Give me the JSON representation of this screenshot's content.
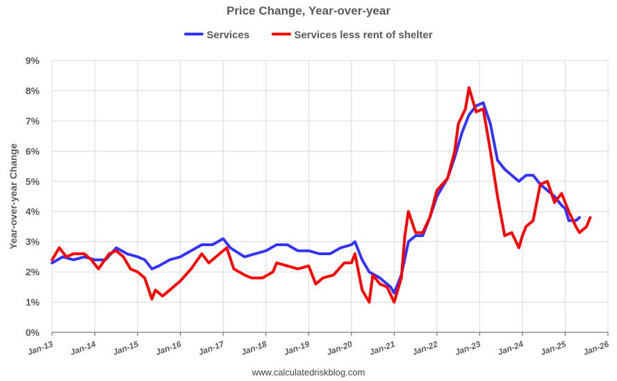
{
  "chart_data": {
    "type": "line",
    "title": "Price Change, Year-over-year",
    "ylabel": "Year-over-year Change",
    "xlabel": "",
    "source": "www.calculatedriskblog.com",
    "ylim": [
      0,
      9
    ],
    "y_ticks": [
      "0%",
      "1%",
      "2%",
      "3%",
      "4%",
      "5%",
      "6%",
      "7%",
      "8%",
      "9%"
    ],
    "x_ticks": [
      "Jan-13",
      "Jan-14",
      "Jan-15",
      "Jan-16",
      "Jan-17",
      "Jan-18",
      "Jan-19",
      "Jan-20",
      "Jan-21",
      "Jan-22",
      "Jan-23",
      "Jan-24",
      "Jan-25",
      "Jan-26"
    ],
    "grid": true,
    "legend_position": "top",
    "series": [
      {
        "name": "Services",
        "color": "#3333ff",
        "points": [
          [
            "2013-01",
            2.3
          ],
          [
            "2013-04",
            2.5
          ],
          [
            "2013-07",
            2.4
          ],
          [
            "2013-10",
            2.5
          ],
          [
            "2014-01",
            2.4
          ],
          [
            "2014-04",
            2.4
          ],
          [
            "2014-07",
            2.8
          ],
          [
            "2014-10",
            2.6
          ],
          [
            "2015-01",
            2.5
          ],
          [
            "2015-03",
            2.4
          ],
          [
            "2015-05",
            2.1
          ],
          [
            "2015-07",
            2.2
          ],
          [
            "2015-10",
            2.4
          ],
          [
            "2016-01",
            2.5
          ],
          [
            "2016-04",
            2.7
          ],
          [
            "2016-07",
            2.9
          ],
          [
            "2016-10",
            2.9
          ],
          [
            "2017-01",
            3.1
          ],
          [
            "2017-03",
            2.8
          ],
          [
            "2017-07",
            2.5
          ],
          [
            "2017-10",
            2.6
          ],
          [
            "2018-01",
            2.7
          ],
          [
            "2018-04",
            2.9
          ],
          [
            "2018-07",
            2.9
          ],
          [
            "2018-10",
            2.7
          ],
          [
            "2019-01",
            2.7
          ],
          [
            "2019-04",
            2.6
          ],
          [
            "2019-07",
            2.6
          ],
          [
            "2019-10",
            2.8
          ],
          [
            "2020-01",
            2.9
          ],
          [
            "2020-02",
            3.0
          ],
          [
            "2020-04",
            2.4
          ],
          [
            "2020-06",
            2.0
          ],
          [
            "2020-09",
            1.8
          ],
          [
            "2020-12",
            1.5
          ],
          [
            "2021-01",
            1.3
          ],
          [
            "2021-03",
            1.9
          ],
          [
            "2021-05",
            3.0
          ],
          [
            "2021-07",
            3.2
          ],
          [
            "2021-09",
            3.2
          ],
          [
            "2021-11",
            3.8
          ],
          [
            "2022-01",
            4.5
          ],
          [
            "2022-04",
            5.1
          ],
          [
            "2022-06",
            5.8
          ],
          [
            "2022-08",
            6.6
          ],
          [
            "2022-10",
            7.2
          ],
          [
            "2022-12",
            7.5
          ],
          [
            "2023-02",
            7.6
          ],
          [
            "2023-04",
            6.9
          ],
          [
            "2023-06",
            5.7
          ],
          [
            "2023-08",
            5.4
          ],
          [
            "2023-10",
            5.2
          ],
          [
            "2023-12",
            5.0
          ],
          [
            "2024-02",
            5.2
          ],
          [
            "2024-04",
            5.2
          ],
          [
            "2024-06",
            4.9
          ],
          [
            "2024-08",
            4.7
          ],
          [
            "2024-10",
            4.5
          ],
          [
            "2024-12",
            4.2
          ],
          [
            "2025-01",
            4.1
          ],
          [
            "2025-02",
            3.7
          ],
          [
            "2025-04",
            3.7
          ],
          [
            "2025-05",
            3.8
          ]
        ]
      },
      {
        "name": "Services less rent of shelter",
        "color": "#ff0000",
        "points": [
          [
            "2013-01",
            2.4
          ],
          [
            "2013-03",
            2.8
          ],
          [
            "2013-05",
            2.5
          ],
          [
            "2013-07",
            2.6
          ],
          [
            "2013-10",
            2.6
          ],
          [
            "2013-12",
            2.4
          ],
          [
            "2014-02",
            2.1
          ],
          [
            "2014-05",
            2.6
          ],
          [
            "2014-07",
            2.7
          ],
          [
            "2014-09",
            2.5
          ],
          [
            "2014-11",
            2.1
          ],
          [
            "2015-01",
            2.0
          ],
          [
            "2015-03",
            1.8
          ],
          [
            "2015-05",
            1.1
          ],
          [
            "2015-06",
            1.4
          ],
          [
            "2015-08",
            1.2
          ],
          [
            "2015-11",
            1.5
          ],
          [
            "2016-01",
            1.7
          ],
          [
            "2016-04",
            2.1
          ],
          [
            "2016-07",
            2.6
          ],
          [
            "2016-09",
            2.3
          ],
          [
            "2016-12",
            2.6
          ],
          [
            "2017-02",
            2.8
          ],
          [
            "2017-04",
            2.1
          ],
          [
            "2017-07",
            1.9
          ],
          [
            "2017-09",
            1.8
          ],
          [
            "2017-12",
            1.8
          ],
          [
            "2018-03",
            2.0
          ],
          [
            "2018-04",
            2.3
          ],
          [
            "2018-07",
            2.2
          ],
          [
            "2018-10",
            2.1
          ],
          [
            "2019-01",
            2.2
          ],
          [
            "2019-03",
            1.6
          ],
          [
            "2019-05",
            1.8
          ],
          [
            "2019-08",
            1.9
          ],
          [
            "2019-11",
            2.3
          ],
          [
            "2020-01",
            2.3
          ],
          [
            "2020-02",
            2.6
          ],
          [
            "2020-04",
            1.4
          ],
          [
            "2020-06",
            1.0
          ],
          [
            "2020-07",
            1.9
          ],
          [
            "2020-09",
            1.6
          ],
          [
            "2020-11",
            1.5
          ],
          [
            "2021-01",
            1.0
          ],
          [
            "2021-03",
            1.8
          ],
          [
            "2021-04",
            3.2
          ],
          [
            "2021-05",
            4.0
          ],
          [
            "2021-07",
            3.3
          ],
          [
            "2021-09",
            3.3
          ],
          [
            "2021-11",
            3.8
          ],
          [
            "2022-01",
            4.7
          ],
          [
            "2022-04",
            5.1
          ],
          [
            "2022-06",
            6.0
          ],
          [
            "2022-07",
            6.9
          ],
          [
            "2022-09",
            7.4
          ],
          [
            "2022-10",
            8.1
          ],
          [
            "2022-12",
            7.3
          ],
          [
            "2023-02",
            7.4
          ],
          [
            "2023-04",
            6.0
          ],
          [
            "2023-06",
            4.5
          ],
          [
            "2023-08",
            3.2
          ],
          [
            "2023-10",
            3.3
          ],
          [
            "2023-12",
            2.8
          ],
          [
            "2024-01",
            3.2
          ],
          [
            "2024-02",
            3.5
          ],
          [
            "2024-04",
            3.7
          ],
          [
            "2024-06",
            4.9
          ],
          [
            "2024-08",
            5.0
          ],
          [
            "2024-10",
            4.3
          ],
          [
            "2024-12",
            4.6
          ],
          [
            "2025-02",
            4.0
          ],
          [
            "2025-04",
            3.5
          ],
          [
            "2025-05",
            3.3
          ],
          [
            "2025-07",
            3.5
          ],
          [
            "2025-08",
            3.8
          ]
        ]
      }
    ]
  }
}
